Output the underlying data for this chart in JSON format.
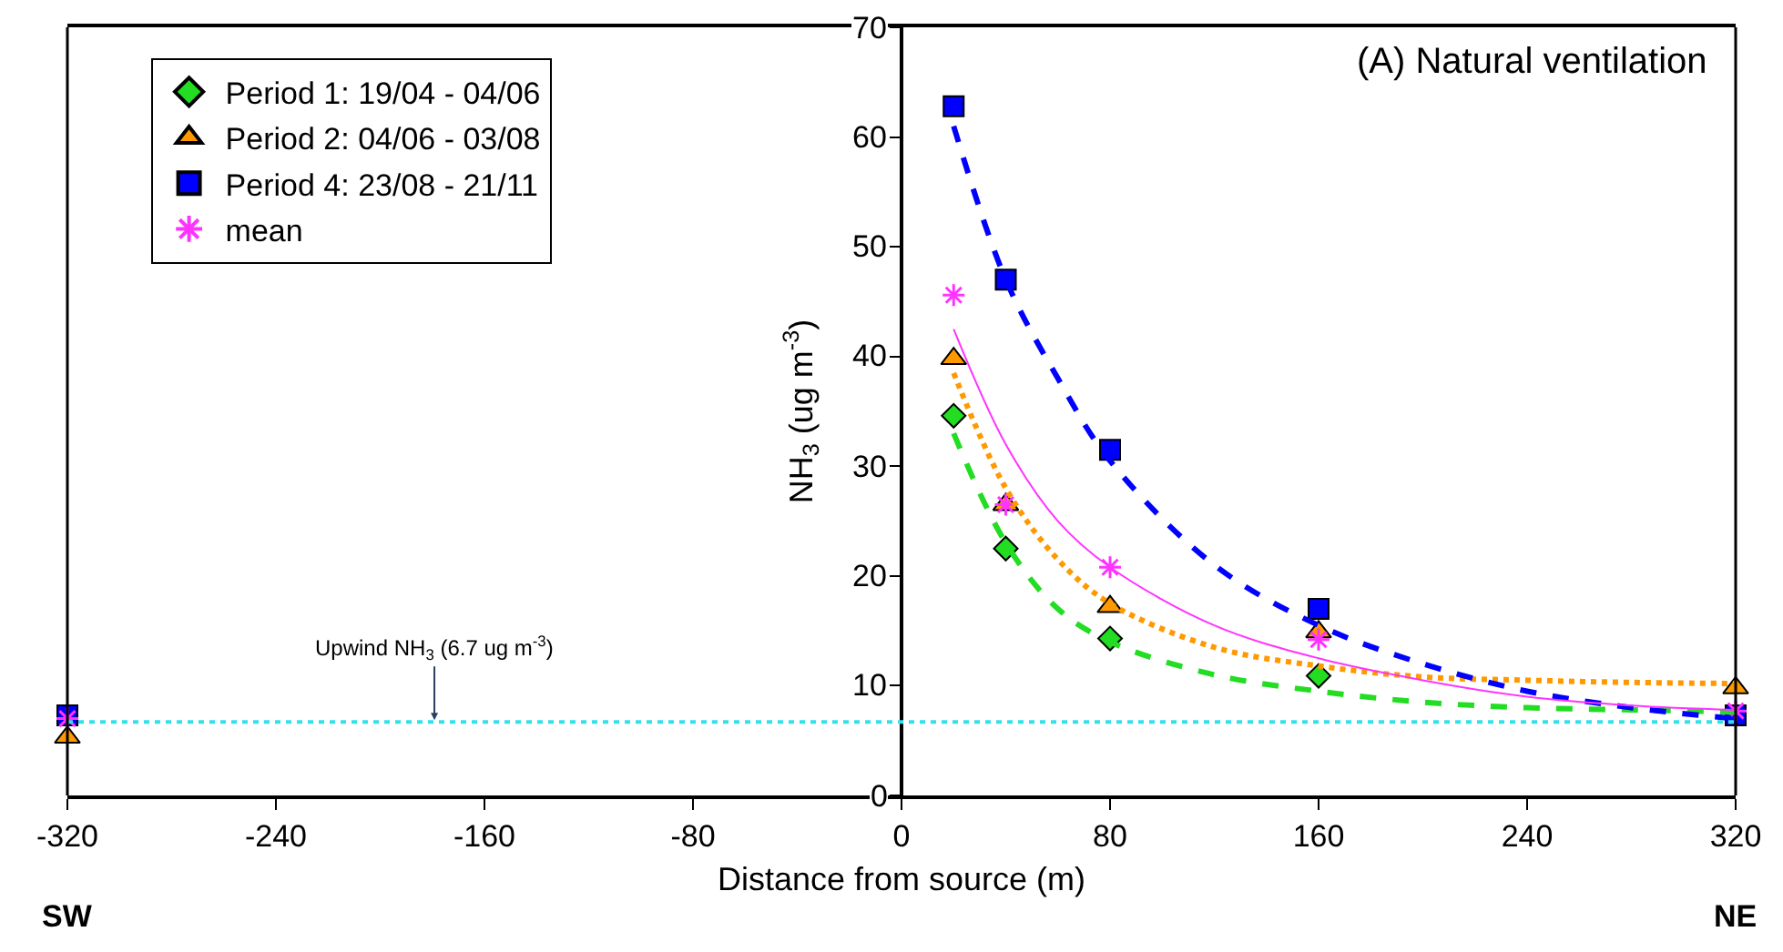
{
  "chart_data": {
    "type": "scatter",
    "xlabel": "Distance from source (m)",
    "ylabel": "NH$_{3}$ (ug m$^{-3}$)",
    "xlim": [
      -320,
      320
    ],
    "xticks": [
      -320,
      -240,
      -160,
      -80,
      0,
      80,
      160,
      240,
      320
    ],
    "ylim": [
      0,
      70
    ],
    "yticks": [
      0,
      10,
      20,
      30,
      40,
      50,
      60,
      70
    ],
    "legend": "top left",
    "annotations": [
      "(A) Natural ventilation",
      "SW",
      "NE"
    ],
    "ref_lines": [
      {
        "axis": "y",
        "value": 6.7,
        "label": "Upwind NH$_{3}$ (6.7 ug m$^{-3}$)",
        "color": "#33e0ee",
        "line_style": "dotted"
      }
    ],
    "series": [
      {
        "name": "Period 1: 19/04 - 04/06",
        "color": "#22dd22",
        "marker": "diamond",
        "x": [
          20,
          40,
          80,
          160
        ],
        "values": [
          34.6,
          22.5,
          14.3,
          10.9
        ]
      },
      {
        "name": "Period 2: 04/06 - 03/08",
        "color": "#ff9900",
        "marker": "triangle",
        "x": [
          -320,
          20,
          40,
          80,
          160,
          320
        ],
        "values": [
          5.3,
          39.8,
          26.5,
          17.2,
          14.9,
          9.8
        ]
      },
      {
        "name": "Period 4: 23/08 - 21/11",
        "color": "#0000ff",
        "marker": "square",
        "x": [
          -320,
          20,
          40,
          80,
          160,
          320
        ],
        "values": [
          7.3,
          62.8,
          47.0,
          31.5,
          17.0,
          7.3
        ]
      },
      {
        "name": "mean",
        "color": "#ff33ff",
        "marker": "cross",
        "x": [
          -320,
          20,
          40,
          80,
          160,
          320
        ],
        "values": [
          7.0,
          45.6,
          26.5,
          20.8,
          14.2,
          7.7
        ]
      },
      {
        "type": "line",
        "color": "#22dd22",
        "marker": "none",
        "line_style": "dashed",
        "x": [
          20,
          40,
          60,
          80,
          120,
          160,
          200,
          240,
          280,
          320
        ],
        "values": [
          33,
          23,
          17,
          14,
          11,
          9.5,
          8.5,
          8,
          7.8,
          7.6
        ]
      },
      {
        "type": "line",
        "color": "#ff9900",
        "marker": "none",
        "line_style": "dotted",
        "x": [
          20,
          40,
          60,
          80,
          120,
          160,
          200,
          240,
          280,
          320
        ],
        "values": [
          38.5,
          28,
          21.5,
          17.5,
          13.5,
          11.8,
          10.8,
          10.5,
          10.3,
          10.2
        ]
      },
      {
        "type": "line",
        "color": "#0000ff",
        "marker": "none",
        "line_style": "dashed",
        "x": [
          20,
          40,
          60,
          80,
          120,
          160,
          200,
          240,
          280,
          320
        ],
        "values": [
          61,
          47,
          38,
          30.5,
          21,
          15.5,
          12,
          9.5,
          8,
          7
        ]
      },
      {
        "type": "line",
        "color": "#ff33ff",
        "marker": "none",
        "line_style": "solid",
        "x": [
          20,
          40,
          60,
          80,
          120,
          160,
          200,
          240,
          280,
          320
        ],
        "values": [
          42.5,
          32,
          25,
          20.8,
          15.5,
          12.5,
          10.5,
          9,
          8.2,
          7.8
        ]
      }
    ]
  }
}
